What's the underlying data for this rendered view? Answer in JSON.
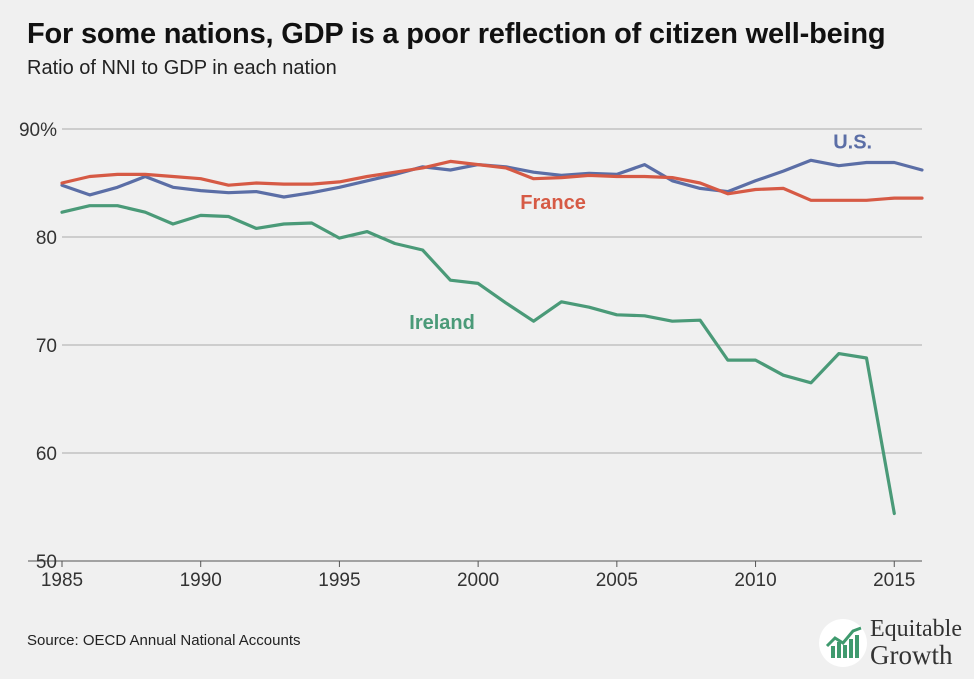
{
  "header": {
    "title": "For some nations, GDP is a poor reflection of citizen well-being",
    "subtitle": "Ratio of NNI to GDP in each nation"
  },
  "footer": {
    "source": "Source: OECD Annual National Accounts",
    "logo_line1": "Equitable",
    "logo_line2": "Growth"
  },
  "colors": {
    "us": "#5b6ea6",
    "france": "#d65a45",
    "ireland": "#4a9a78",
    "grid": "#aaaaaa",
    "axis_text": "#333333",
    "logo_green": "#3f9a6e"
  },
  "chart_data": {
    "type": "line",
    "title": "For some nations, GDP is a poor reflection of citizen well-being",
    "subtitle": "Ratio of NNI to GDP in each nation",
    "xlim": [
      1985,
      2016
    ],
    "ylim": [
      50,
      90
    ],
    "x_ticks": [
      1985,
      1990,
      1995,
      2000,
      2005,
      2010,
      2015
    ],
    "y_ticks": [
      50,
      60,
      70,
      80,
      90
    ],
    "y_tick_labels": [
      "50",
      "60",
      "70",
      "80",
      "90%"
    ],
    "grid": "horizontal",
    "legend": "inline labels",
    "x": [
      1985,
      1986,
      1987,
      1988,
      1989,
      1990,
      1991,
      1992,
      1993,
      1994,
      1995,
      1996,
      1997,
      1998,
      1999,
      2000,
      2001,
      2002,
      2003,
      2004,
      2005,
      2006,
      2007,
      2008,
      2009,
      2010,
      2011,
      2012,
      2013,
      2014,
      2015,
      2016
    ],
    "series": [
      {
        "name": "U.S.",
        "color": "#5b6ea6",
        "values": [
          84.8,
          83.9,
          84.6,
          85.6,
          84.6,
          84.3,
          84.1,
          84.2,
          83.7,
          84.1,
          84.6,
          85.2,
          85.8,
          86.5,
          86.2,
          86.7,
          86.5,
          86.0,
          85.7,
          85.9,
          85.8,
          86.7,
          85.2,
          84.5,
          84.2,
          85.2,
          86.1,
          87.1,
          86.6,
          86.9,
          86.9,
          86.2
        ],
        "label_x": 2013.5,
        "label_y": 88.2
      },
      {
        "name": "France",
        "color": "#d65a45",
        "values": [
          85.0,
          85.6,
          85.8,
          85.8,
          85.6,
          85.4,
          84.8,
          85.0,
          84.9,
          84.9,
          85.1,
          85.6,
          86.0,
          86.4,
          87.0,
          86.7,
          86.4,
          85.4,
          85.5,
          85.7,
          85.6,
          85.6,
          85.5,
          85.0,
          84.0,
          84.4,
          84.5,
          83.4,
          83.4,
          83.4,
          83.6,
          83.6
        ],
        "label_x": 2002.7,
        "label_y": 82.6
      },
      {
        "name": "Ireland",
        "color": "#4a9a78",
        "values": [
          82.3,
          82.9,
          82.9,
          82.3,
          81.2,
          82.0,
          81.9,
          80.8,
          81.2,
          81.3,
          79.9,
          80.5,
          79.4,
          78.8,
          76.0,
          75.7,
          73.9,
          72.2,
          74.0,
          73.5,
          72.8,
          72.7,
          72.2,
          72.3,
          68.6,
          68.6,
          67.2,
          66.5,
          69.2,
          68.8,
          54.4,
          null
        ],
        "label_x": 1998.7,
        "label_y": 71.5
      }
    ]
  }
}
